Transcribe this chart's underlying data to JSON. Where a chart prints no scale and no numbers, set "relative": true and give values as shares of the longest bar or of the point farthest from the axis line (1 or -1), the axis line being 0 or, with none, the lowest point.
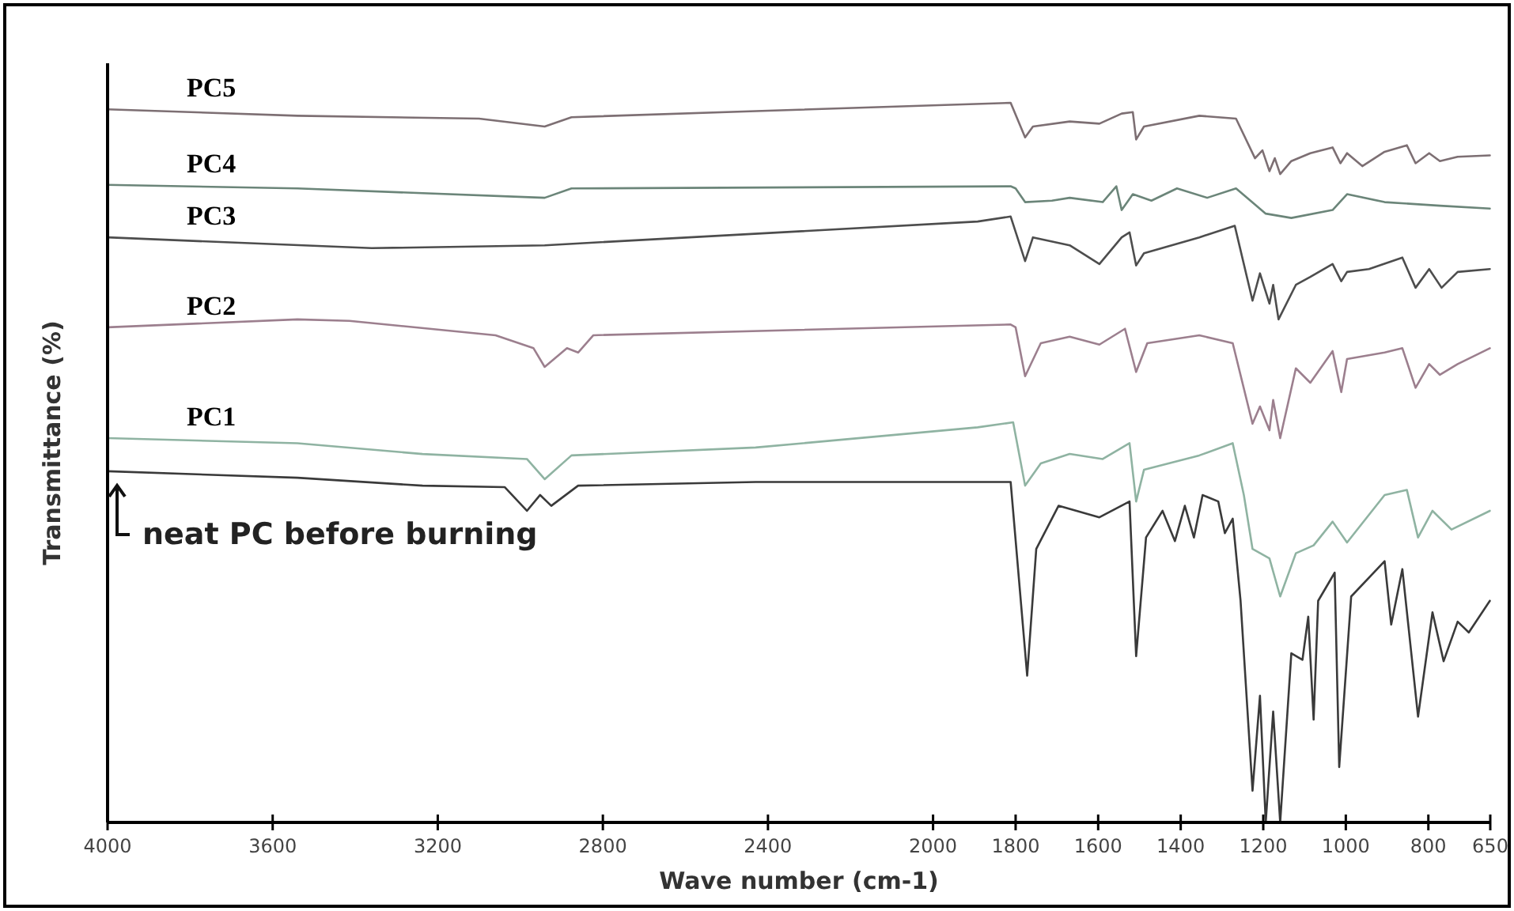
{
  "chart_data": {
    "type": "line",
    "xlabel": "Wave number (cm-1)",
    "ylabel": "Transmittance (%)",
    "relative": true,
    "xlim": [
      4000,
      650
    ],
    "xticks": [
      4000,
      3600,
      3200,
      2800,
      2400,
      2000,
      1800,
      1600,
      1400,
      1200,
      1000,
      800,
      650
    ],
    "series": [
      {
        "name": "PC5",
        "color": "#7d6f73",
        "x": [
          4000,
          3540,
          3100,
          2941,
          2876,
          2400,
          1812,
          1777,
          1758,
          1669,
          1597,
          1543,
          1516,
          1508,
          1489,
          1355,
          1266,
          1220,
          1202,
          1185,
          1172,
          1159,
          1132,
          1086,
          1032,
          1013,
          997,
          960,
          906,
          852,
          831,
          798,
          772,
          729,
          651
        ],
        "values": [
          0.991,
          0.982,
          0.978,
          0.967,
          0.98,
          0.989,
          1,
          0.952,
          0.967,
          0.974,
          0.971,
          0.985,
          0.987,
          0.949,
          0.967,
          0.982,
          0.978,
          0.923,
          0.934,
          0.905,
          0.923,
          0.901,
          0.919,
          0.93,
          0.938,
          0.916,
          0.93,
          0.912,
          0.932,
          0.941,
          0.916,
          0.93,
          0.919,
          0.925,
          0.927
        ]
      },
      {
        "name": "PC4",
        "color": "#6b8579",
        "x": [
          4000,
          3540,
          2941,
          2876,
          1812,
          1800,
          1777,
          1712,
          1669,
          1589,
          1556,
          1543,
          1516,
          1471,
          1409,
          1336,
          1266,
          1194,
          1132,
          1032,
          997,
          906,
          772,
          651
        ],
        "values": [
          0.886,
          0.881,
          0.868,
          0.881,
          0.884,
          0.881,
          0.862,
          0.864,
          0.868,
          0.862,
          0.884,
          0.851,
          0.873,
          0.864,
          0.881,
          0.868,
          0.881,
          0.846,
          0.84,
          0.851,
          0.873,
          0.862,
          0.857,
          0.853
        ]
      },
      {
        "name": "PC3",
        "color": "#4d4d4d",
        "x": [
          4000,
          3360,
          2941,
          1892,
          1812,
          1777,
          1758,
          1669,
          1597,
          1543,
          1524,
          1508,
          1489,
          1355,
          1269,
          1226,
          1208,
          1185,
          1176,
          1163,
          1121,
          1086,
          1032,
          1011,
          997,
          944,
          863,
          831,
          798,
          768,
          729,
          651
        ],
        "values": [
          0.813,
          0.798,
          0.802,
          0.835,
          0.842,
          0.78,
          0.813,
          0.802,
          0.776,
          0.813,
          0.82,
          0.774,
          0.791,
          0.813,
          0.829,
          0.725,
          0.763,
          0.721,
          0.747,
          0.699,
          0.747,
          0.758,
          0.776,
          0.752,
          0.765,
          0.769,
          0.785,
          0.743,
          0.769,
          0.743,
          0.765,
          0.769
        ]
      },
      {
        "name": "PC2",
        "color": "#9c7f8e",
        "x": [
          4000,
          3540,
          3414,
          3060,
          2968,
          2941,
          2887,
          2860,
          2823,
          1812,
          1800,
          1777,
          1739,
          1669,
          1597,
          1535,
          1508,
          1481,
          1355,
          1274,
          1226,
          1208,
          1185,
          1176,
          1159,
          1121,
          1086,
          1032,
          1011,
          997,
          906,
          863,
          831,
          798,
          772,
          729,
          651
        ],
        "values": [
          0.688,
          0.699,
          0.697,
          0.677,
          0.659,
          0.633,
          0.659,
          0.653,
          0.677,
          0.692,
          0.688,
          0.62,
          0.666,
          0.675,
          0.664,
          0.686,
          0.626,
          0.666,
          0.677,
          0.666,
          0.554,
          0.578,
          0.545,
          0.587,
          0.534,
          0.631,
          0.611,
          0.655,
          0.598,
          0.644,
          0.653,
          0.659,
          0.604,
          0.637,
          0.622,
          0.637,
          0.659
        ]
      },
      {
        "name": "PC1",
        "color": "#8fb3a2",
        "x": [
          4000,
          3540,
          3237,
          2984,
          2941,
          2876,
          2430,
          1892,
          1806,
          1777,
          1739,
          1669,
          1589,
          1524,
          1508,
          1489,
          1355,
          1274,
          1247,
          1226,
          1185,
          1159,
          1121,
          1078,
          1032,
          997,
          906,
          852,
          825,
          790,
          744,
          651
        ],
        "values": [
          0.534,
          0.527,
          0.512,
          0.505,
          0.477,
          0.51,
          0.521,
          0.549,
          0.556,
          0.468,
          0.499,
          0.512,
          0.505,
          0.527,
          0.446,
          0.49,
          0.51,
          0.527,
          0.455,
          0.38,
          0.367,
          0.314,
          0.374,
          0.385,
          0.418,
          0.389,
          0.455,
          0.462,
          0.396,
          0.433,
          0.407,
          0.433
        ]
      },
      {
        "name": "neat PC before burning",
        "color": "#3a3a3a",
        "x": [
          4000,
          3540,
          3237,
          3038,
          2984,
          2952,
          2925,
          2860,
          2430,
          1812,
          1772,
          1750,
          1696,
          1597,
          1524,
          1508,
          1484,
          1444,
          1414,
          1390,
          1368,
          1347,
          1309,
          1293,
          1274,
          1255,
          1226,
          1208,
          1194,
          1176,
          1159,
          1132,
          1105,
          1091,
          1078,
          1067,
          1027,
          1016,
          987,
          906,
          890,
          863,
          825,
          790,
          763,
          729,
          702,
          651
        ],
        "values": [
          0.488,
          0.479,
          0.468,
          0.466,
          0.433,
          0.455,
          0.44,
          0.468,
          0.473,
          0.473,
          0.204,
          0.38,
          0.44,
          0.424,
          0.446,
          0.231,
          0.396,
          0.433,
          0.391,
          0.44,
          0.396,
          0.455,
          0.446,
          0.402,
          0.422,
          0.308,
          0.044,
          0.176,
          0,
          0.154,
          0,
          0.235,
          0.226,
          0.286,
          0.143,
          0.308,
          0.347,
          0.077,
          0.314,
          0.363,
          0.275,
          0.352,
          0.147,
          0.292,
          0.224,
          0.279,
          0.264,
          0.308
        ]
      }
    ]
  }
}
